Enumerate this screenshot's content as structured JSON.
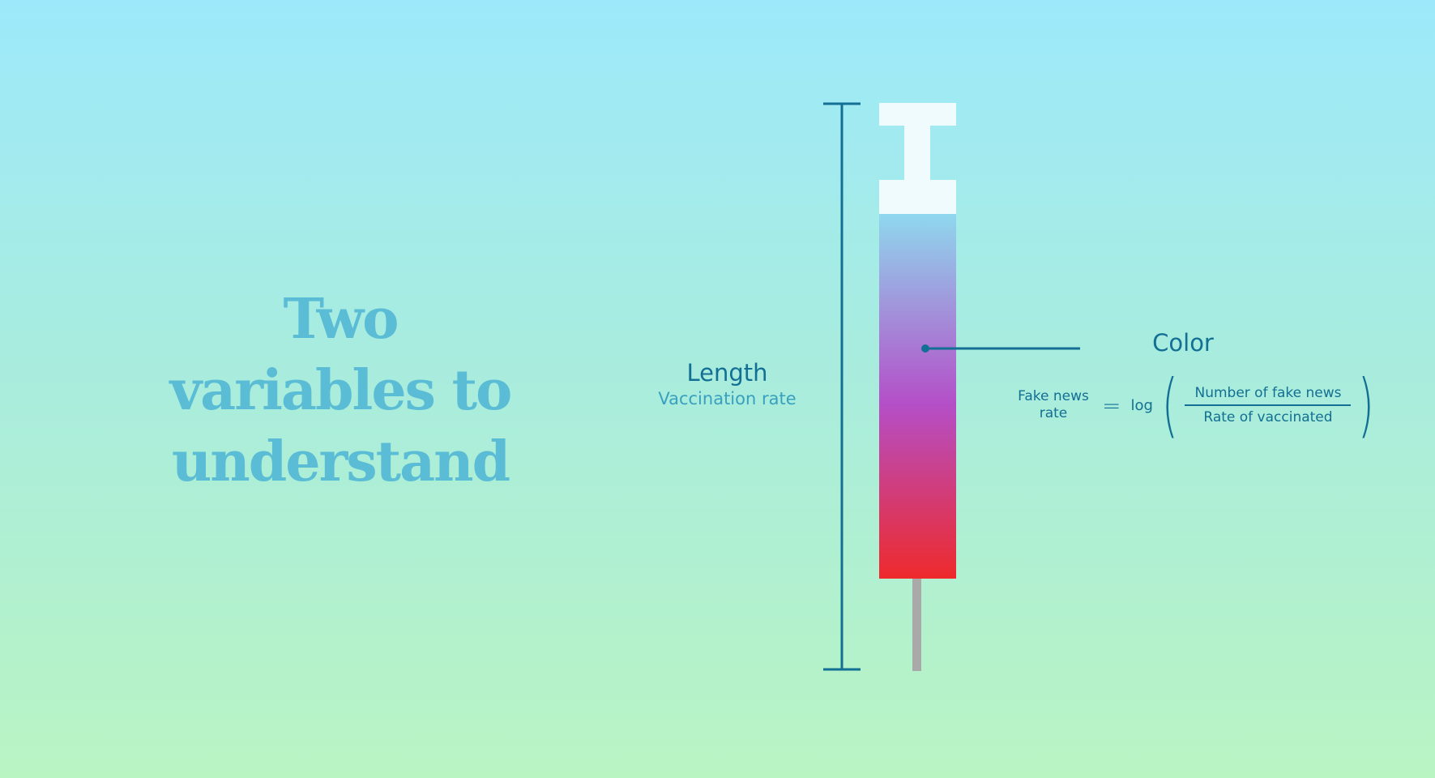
{
  "headline": {
    "line1": "Two",
    "line2": "variables to",
    "line3": "understand"
  },
  "length": {
    "title": "Length",
    "subtitle": "Vaccination rate"
  },
  "color": {
    "title": "Color"
  },
  "formula": {
    "lhs_line1": "Fake news",
    "lhs_line2": "rate",
    "equals": "=",
    "log": "log",
    "numerator": "Number of fake news",
    "denominator": "Rate of vaccinated"
  },
  "colors": {
    "accent": "#136f93",
    "headline": "#5bbcd6",
    "syringe_top": "#8fd8ee",
    "syringe_mid": "#b44fc8",
    "syringe_bottom": "#ee2a2c",
    "needle": "#a9a9a9",
    "plunger": "#f0fbfd"
  }
}
